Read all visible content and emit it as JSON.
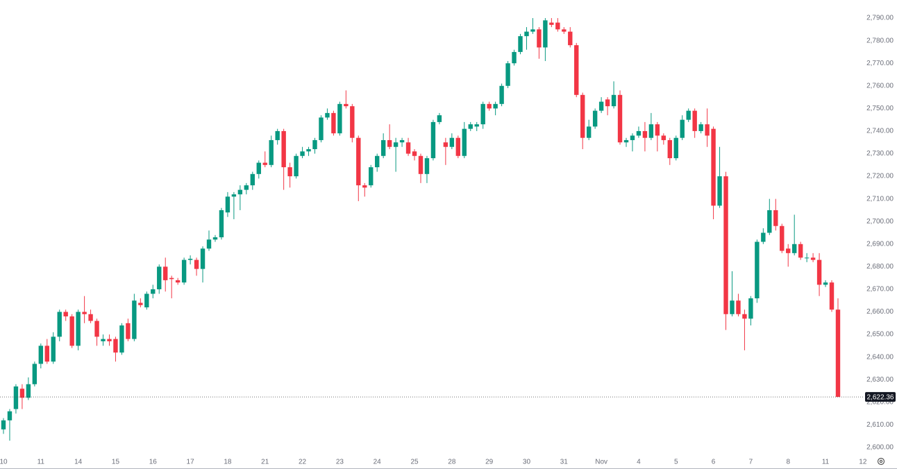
{
  "chart_data": {
    "type": "candlestick",
    "categories": [
      "10",
      null,
      null,
      null,
      null,
      null,
      "11",
      null,
      null,
      null,
      null,
      null,
      "14",
      null,
      null,
      null,
      null,
      null,
      "15",
      null,
      null,
      null,
      null,
      null,
      "16",
      null,
      null,
      null,
      null,
      null,
      "17",
      null,
      null,
      null,
      null,
      null,
      "18",
      null,
      null,
      null,
      null,
      null,
      "21",
      null,
      null,
      null,
      null,
      null,
      "22",
      null,
      null,
      null,
      null,
      null,
      "23",
      null,
      null,
      null,
      null,
      null,
      "24",
      null,
      null,
      null,
      null,
      null,
      "25",
      null,
      null,
      null,
      null,
      null,
      "28",
      null,
      null,
      null,
      null,
      null,
      "29",
      null,
      null,
      null,
      null,
      null,
      "30",
      null,
      null,
      null,
      null,
      null,
      "31",
      null,
      null,
      null,
      null,
      null,
      "Nov",
      null,
      null,
      null,
      null,
      null,
      "4",
      null,
      null,
      null,
      null,
      null,
      "5",
      null,
      null,
      null,
      null,
      null,
      "6",
      null,
      null,
      null,
      null,
      null,
      "7",
      null,
      null,
      null,
      null,
      null,
      "8",
      null,
      null,
      null,
      null,
      null,
      "11",
      null,
      null,
      null,
      null,
      null,
      "12"
    ],
    "open": [
      2608,
      2612,
      2617,
      2626,
      2622,
      2628,
      2637,
      2645,
      2638,
      2649,
      2660,
      2658,
      2645,
      2660,
      2659,
      2656,
      2647,
      2648,
      2648,
      2642,
      2655,
      2648,
      2664,
      2662,
      2668,
      2670,
      2680,
      2675,
      2674,
      2673,
      2683,
      2683,
      2679,
      2688,
      2692,
      2693,
      2704,
      2711,
      2712,
      2714,
      2716,
      2721,
      2726,
      2725,
      2736,
      2740,
      2724,
      2720,
      2729,
      2731,
      2732,
      2736,
      2746,
      2748,
      2739,
      2752,
      2751,
      2737,
      2716,
      2716,
      2724,
      2729,
      2736,
      2733,
      2735,
      2735,
      2731,
      2729,
      2721,
      2728,
      2744,
      2735,
      2733,
      2737,
      2729,
      2741,
      2742,
      2743,
      2752,
      2750,
      2752,
      2760,
      2770,
      2775,
      2782,
      2784,
      2785,
      2777,
      2788,
      2788,
      2785,
      2784,
      2778,
      2756,
      2737,
      2742,
      2749,
      2754,
      2751,
      2756,
      2735,
      2736,
      2738,
      2740,
      2737,
      2743,
      2738,
      2736,
      2728,
      2737,
      2745,
      2749,
      2740,
      2743,
      2741,
      2707,
      2720,
      2659,
      2665,
      2659,
      2657,
      2666,
      2691,
      2695,
      2705,
      2698,
      2688,
      2686,
      2690,
      2684,
      2684,
      2683,
      2672,
      2673,
      2661,
      null,
      null,
      null,
      null
    ],
    "high": [
      2613,
      2617,
      2628,
      2628,
      2631,
      2638,
      2646,
      2648,
      2651,
      2661,
      2661,
      2659,
      2661,
      2667,
      2661,
      2657,
      2650,
      2650,
      2649,
      2655,
      2657,
      2668,
      2666,
      2669,
      2672,
      2681,
      2684,
      2676,
      2675,
      2684,
      2685,
      2684,
      2689,
      2696,
      2694,
      2706,
      2713,
      2713,
      2716,
      2717,
      2722,
      2727,
      2731,
      2738,
      2741,
      2741,
      2726,
      2730,
      2733,
      2733,
      2737,
      2747,
      2750,
      2749,
      2753,
      2758,
      2752,
      2738,
      2717,
      2725,
      2730,
      2739,
      2743,
      2737,
      2737,
      2737,
      2732,
      2730,
      2729,
      2745,
      2748,
      2737,
      2739,
      2738,
      2744,
      2744,
      2744,
      2753,
      2753,
      2753,
      2761,
      2771,
      2776,
      2783,
      2786,
      2790,
      2786,
      2790,
      2790,
      2790,
      2786,
      2786,
      2779,
      2757,
      2745,
      2750,
      2755,
      2755,
      2762,
      2758,
      2737,
      2739,
      2742,
      2744,
      2748,
      2744,
      2739,
      2737,
      2738,
      2747,
      2750,
      2750,
      2744,
      2750,
      2742,
      2733,
      2722,
      2678,
      2668,
      2661,
      2667,
      2692,
      2697,
      2710,
      2710,
      2699,
      2690,
      2703,
      2691,
      2686,
      2686,
      2686,
      2674,
      2674,
      2666,
      null,
      null,
      null,
      null
    ],
    "low": [
      2606,
      2603,
      2615,
      2617,
      2621,
      2627,
      2635,
      2637,
      2637,
      2647,
      2656,
      2644,
      2643,
      2655,
      2655,
      2645,
      2645,
      2645,
      2638,
      2641,
      2647,
      2647,
      2662,
      2661,
      2666,
      2668,
      2669,
      2666,
      2672,
      2672,
      2681,
      2676,
      2673,
      2687,
      2691,
      2692,
      2702,
      2701,
      2705,
      2712,
      2714,
      2719,
      2724,
      2724,
      2734,
      2714,
      2715,
      2719,
      2728,
      2729,
      2730,
      2735,
      2745,
      2738,
      2738,
      2750,
      2735,
      2709,
      2711,
      2715,
      2722,
      2728,
      2732,
      2722,
      2733,
      2729,
      2727,
      2717,
      2717,
      2727,
      2743,
      2725,
      2732,
      2728,
      2728,
      2740,
      2740,
      2741,
      2749,
      2747,
      2751,
      2759,
      2769,
      2774,
      2776,
      2783,
      2772,
      2771,
      2786,
      2784,
      2783,
      2777,
      2755,
      2732,
      2736,
      2741,
      2748,
      2747,
      2750,
      2734,
      2733,
      2731,
      2737,
      2731,
      2736,
      2731,
      2734,
      2725,
      2727,
      2736,
      2744,
      2737,
      2739,
      2733,
      2701,
      2706,
      2652,
      2658,
      2658,
      2643,
      2654,
      2664,
      2690,
      2694,
      2696,
      2686,
      2680,
      2685,
      2683,
      2682,
      2682,
      2667,
      2671,
      2660,
      2622.36,
      null,
      null,
      null,
      null
    ],
    "close": [
      2612,
      2616,
      2627,
      2622,
      2628,
      2637,
      2645,
      2638,
      2649,
      2660,
      2658,
      2645,
      2660,
      2659,
      2656,
      2649,
      2648,
      2647,
      2642,
      2654,
      2648,
      2665,
      2663,
      2668,
      2670,
      2680,
      2674,
      2674.5,
      2673,
      2683,
      2683.5,
      2679,
      2688,
      2692,
      2693,
      2705,
      2711,
      2712,
      2714,
      2716,
      2721,
      2726,
      2725,
      2736,
      2740,
      2724,
      2720,
      2729,
      2731,
      2732,
      2736,
      2746,
      2748,
      2739,
      2752,
      2751,
      2737,
      2716,
      2715,
      2724,
      2729,
      2736,
      2733,
      2735,
      2736,
      2730,
      2729,
      2721,
      2728,
      2744,
      2747,
      2733,
      2737,
      2729,
      2741,
      2743,
      2743,
      2752,
      2750,
      2752,
      2760,
      2770,
      2775,
      2782,
      2784,
      2785,
      2777,
      2789,
      2787,
      2785,
      2784,
      2778,
      2756,
      2737,
      2742,
      2749,
      2753,
      2751,
      2756,
      2735,
      2736,
      2738,
      2740,
      2737,
      2743,
      2738,
      2736,
      2728,
      2737,
      2745,
      2749,
      2740,
      2743,
      2738,
      2707,
      2720,
      2659,
      2665,
      2659,
      2657,
      2666,
      2691,
      2695,
      2705,
      2698,
      2687,
      2686,
      2690,
      2684,
      2684,
      2683,
      2672,
      2673,
      2661,
      2622.36,
      null,
      null,
      null,
      null
    ],
    "up_color": "#089981",
    "down_color": "#f23645",
    "ylim": [
      2596,
      2798
    ],
    "yticks": [
      {
        "value": 2600,
        "label": "2,600.00"
      },
      {
        "value": 2610,
        "label": "2,610.00"
      },
      {
        "value": 2620,
        "label": "2,620.00"
      },
      {
        "value": 2630,
        "label": "2,630.00"
      },
      {
        "value": 2640,
        "label": "2,640.00"
      },
      {
        "value": 2650,
        "label": "2,650.00"
      },
      {
        "value": 2660,
        "label": "2,660.00"
      },
      {
        "value": 2670,
        "label": "2,670.00"
      },
      {
        "value": 2680,
        "label": "2,680.00"
      },
      {
        "value": 2690,
        "label": "2,690.00"
      },
      {
        "value": 2700,
        "label": "2,700.00"
      },
      {
        "value": 2710,
        "label": "2,710.00"
      },
      {
        "value": 2720,
        "label": "2,720.00"
      },
      {
        "value": 2730,
        "label": "2,730.00"
      },
      {
        "value": 2740,
        "label": "2,740.00"
      },
      {
        "value": 2750,
        "label": "2,750.00"
      },
      {
        "value": 2760,
        "label": "2,760.00"
      },
      {
        "value": 2770,
        "label": "2,770.00"
      },
      {
        "value": 2780,
        "label": "2,780.00"
      },
      {
        "value": 2790,
        "label": "2,790.00"
      }
    ],
    "last_price": {
      "value": 2622.36,
      "label": "2,622.36"
    }
  }
}
